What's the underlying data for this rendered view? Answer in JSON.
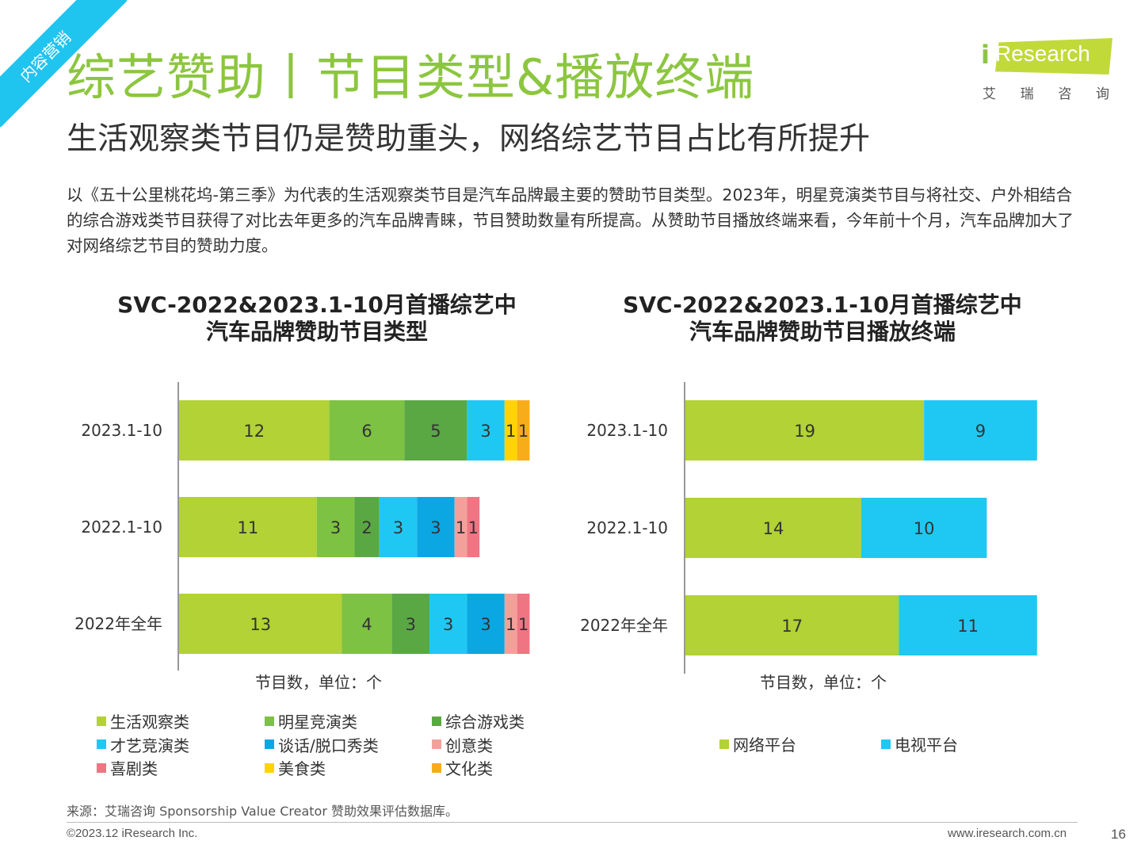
{
  "ribbon": {
    "label": "内容营销"
  },
  "header": {
    "title": "综艺赞助丨节目类型&播放终端",
    "subtitle": "生活观察类节目仍是赞助重头，网络综艺节目占比有所提升",
    "body": "以《五十公里桃花坞-第三季》为代表的生活观察类节目是汽车品牌最主要的赞助节目类型。2023年，明星竞演类节目与将社交、户外相结合的综合游戏类节目获得了对比去年更多的汽车品牌青睐，节目赞助数量有所提高。从赞助节目播放终端来看，今年前十个月，汽车品牌加大了对网络综艺节目的赞助力度。"
  },
  "logo": {
    "brand": "Research",
    "i_mark": "i",
    "cn": [
      "艾",
      "瑞",
      "咨",
      "询"
    ]
  },
  "chart_data": [
    {
      "type": "bar",
      "orientation": "horizontal",
      "stacked": true,
      "title_lines": [
        "SVC-2022&2023.1-10月首播综艺中",
        "汽车品牌赞助节目类型"
      ],
      "categories": [
        "2023.1-10",
        "2022.1-10",
        "2022年全年"
      ],
      "series": [
        {
          "name": "生活观察类",
          "color": "#b2d235",
          "values": [
            12,
            11,
            13
          ]
        },
        {
          "name": "明星竞演类",
          "color": "#7dc242",
          "values": [
            6,
            3,
            4
          ]
        },
        {
          "name": "综合游戏类",
          "color": "#5aa844",
          "values": [
            5,
            2,
            3
          ]
        },
        {
          "name": "才艺竞演类",
          "color": "#1fc8f2",
          "values": [
            3,
            3,
            3
          ]
        },
        {
          "name": "谈话/脱口秀类",
          "color": "#0aa7e2",
          "values": [
            0,
            3,
            3
          ]
        },
        {
          "name": "创意类",
          "color": "#f4a09a",
          "values": [
            0,
            1,
            1
          ]
        },
        {
          "name": "喜剧类",
          "color": "#ef7583",
          "values": [
            0,
            1,
            1
          ]
        },
        {
          "name": "美食类",
          "color": "#ffd400",
          "values": [
            1,
            0,
            0
          ]
        },
        {
          "name": "文化类",
          "color": "#f7ad1a",
          "values": [
            1,
            0,
            0
          ]
        }
      ],
      "xlabel": "节目数，单位：个",
      "xlim": [
        0,
        28
      ]
    },
    {
      "type": "bar",
      "orientation": "horizontal",
      "stacked": true,
      "title_lines": [
        "SVC-2022&2023.1-10月首播综艺中",
        "汽车品牌赞助节目播放终端"
      ],
      "categories": [
        "2023.1-10",
        "2022.1-10",
        "2022年全年"
      ],
      "series": [
        {
          "name": "网络平台",
          "color": "#b2d235",
          "values": [
            19,
            14,
            17
          ]
        },
        {
          "name": "电视平台",
          "color": "#1fc8f2",
          "values": [
            9,
            10,
            11
          ]
        }
      ],
      "xlabel": "节目数，单位：个",
      "xlim": [
        0,
        28
      ]
    }
  ],
  "footer": {
    "source": "来源：艾瑞咨询 Sponsorship Value Creator 赞助效果评估数据库。",
    "copyright": "©2023.12 iResearch Inc.",
    "website": "www.iresearch.com.cn",
    "page": "16"
  }
}
